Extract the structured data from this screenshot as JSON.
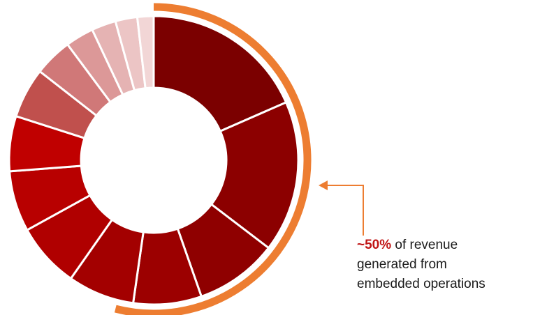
{
  "chart_data": {
    "type": "donut",
    "title": "",
    "slice_colors": [
      "#7b0000",
      "#8c0000",
      "#8f0000",
      "#9c0000",
      "#a30000",
      "#b00000",
      "#b80000",
      "#c00000",
      "#c0504d",
      "#d07878",
      "#dc9898",
      "#e5b3b3",
      "#ecc5c5",
      "#f2d6d6"
    ],
    "values": [
      20.3,
      18.7,
      10.2,
      8.4,
      8.2,
      8.0,
      7.5,
      6.8,
      6.2,
      4.7,
      3.5,
      3.0,
      2.7,
      2.0
    ],
    "highlight": {
      "share_of_total": 0.54,
      "color": "#ed7d31"
    },
    "annotation": {
      "emphasis": "~50%",
      "line1_rest": " of revenue",
      "line2": "generated from",
      "line3": "embedded operations"
    }
  }
}
